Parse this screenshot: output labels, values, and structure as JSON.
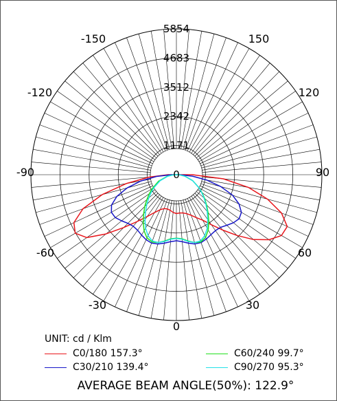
{
  "chart_data": {
    "type": "polar",
    "unit_label": "UNIT: cd / Klm",
    "radial_ticks": [
      "0",
      "1171",
      "2342",
      "3512",
      "4683",
      "5854"
    ],
    "radial_max": 5854,
    "angle_labels": [
      {
        "angle": 0,
        "label": "0"
      },
      {
        "angle": 30,
        "label": "30"
      },
      {
        "angle": -30,
        "label": "-30"
      },
      {
        "angle": 60,
        "label": "60"
      },
      {
        "angle": -60,
        "label": "-60"
      },
      {
        "angle": 90,
        "label": "90"
      },
      {
        "angle": -90,
        "label": "-90"
      },
      {
        "angle": 120,
        "label": "120"
      },
      {
        "angle": -120,
        "label": "-120"
      },
      {
        "angle": 150,
        "label": "150"
      },
      {
        "angle": -150,
        "label": "-150"
      },
      {
        "angle": 180,
        "label": "5854"
      }
    ],
    "series": [
      {
        "name": "C0/180 157.3°",
        "color": "#e8151b",
        "points": [
          [
            -90,
            340
          ],
          [
            -85,
            1100
          ],
          [
            -80,
            2050
          ],
          [
            -75,
            3100
          ],
          [
            -70,
            4000
          ],
          [
            -65,
            4550
          ],
          [
            -60,
            4700
          ],
          [
            -55,
            4400
          ],
          [
            -50,
            3700
          ],
          [
            -45,
            3000
          ],
          [
            -40,
            2450
          ],
          [
            -35,
            2050
          ],
          [
            -30,
            1750
          ],
          [
            -25,
            1550
          ],
          [
            -20,
            1450
          ],
          [
            -15,
            1420
          ],
          [
            -10,
            1450
          ],
          [
            -5,
            1520
          ],
          [
            0,
            1560
          ],
          [
            5,
            1540
          ],
          [
            10,
            1560
          ],
          [
            15,
            1620
          ],
          [
            20,
            1730
          ],
          [
            25,
            1900
          ],
          [
            30,
            2100
          ],
          [
            35,
            2450
          ],
          [
            40,
            2900
          ],
          [
            45,
            3450
          ],
          [
            50,
            4050
          ],
          [
            55,
            4550
          ],
          [
            60,
            4880
          ],
          [
            65,
            4920
          ],
          [
            70,
            4500
          ],
          [
            75,
            3800
          ],
          [
            80,
            2950
          ],
          [
            85,
            1900
          ],
          [
            90,
            650
          ]
        ]
      },
      {
        "name": "C30/210 139.4°",
        "color": "#1515c8",
        "points": [
          [
            -90,
            200
          ],
          [
            -85,
            800
          ],
          [
            -80,
            1450
          ],
          [
            -75,
            2050
          ],
          [
            -70,
            2550
          ],
          [
            -65,
            2880
          ],
          [
            -60,
            3020
          ],
          [
            -55,
            3000
          ],
          [
            -50,
            2880
          ],
          [
            -45,
            2760
          ],
          [
            -40,
            2700
          ],
          [
            -35,
            2720
          ],
          [
            -30,
            2800
          ],
          [
            -25,
            2880
          ],
          [
            -20,
            2920
          ],
          [
            -15,
            2880
          ],
          [
            -10,
            2790
          ],
          [
            -5,
            2700
          ],
          [
            0,
            2650
          ],
          [
            5,
            2700
          ],
          [
            10,
            2790
          ],
          [
            15,
            2880
          ],
          [
            20,
            2900
          ],
          [
            25,
            2850
          ],
          [
            30,
            2780
          ],
          [
            35,
            2740
          ],
          [
            40,
            2760
          ],
          [
            45,
            2870
          ],
          [
            50,
            3000
          ],
          [
            55,
            3080
          ],
          [
            60,
            3020
          ],
          [
            65,
            2780
          ],
          [
            70,
            2400
          ],
          [
            75,
            1850
          ],
          [
            80,
            1250
          ],
          [
            85,
            650
          ],
          [
            90,
            120
          ]
        ]
      },
      {
        "name": "C60/240 99.7°",
        "color": "#22e01e",
        "points": [
          [
            -90,
            100
          ],
          [
            -80,
            380
          ],
          [
            -70,
            760
          ],
          [
            -60,
            1130
          ],
          [
            -55,
            1330
          ],
          [
            -50,
            1550
          ],
          [
            -45,
            1800
          ],
          [
            -40,
            2050
          ],
          [
            -35,
            2330
          ],
          [
            -30,
            2600
          ],
          [
            -25,
            2800
          ],
          [
            -20,
            2870
          ],
          [
            -15,
            2820
          ],
          [
            -10,
            2700
          ],
          [
            -5,
            2580
          ],
          [
            0,
            2550
          ],
          [
            5,
            2580
          ],
          [
            10,
            2700
          ],
          [
            15,
            2820
          ],
          [
            20,
            2870
          ],
          [
            25,
            2780
          ],
          [
            30,
            2560
          ],
          [
            35,
            2270
          ],
          [
            40,
            1980
          ],
          [
            45,
            1720
          ],
          [
            50,
            1480
          ],
          [
            55,
            1260
          ],
          [
            60,
            1060
          ],
          [
            70,
            700
          ],
          [
            80,
            350
          ],
          [
            90,
            90
          ]
        ]
      },
      {
        "name": "C90/270 95.3°",
        "color": "#22e0e8",
        "points": [
          [
            -90,
            100
          ],
          [
            -80,
            350
          ],
          [
            -70,
            700
          ],
          [
            -60,
            1050
          ],
          [
            -55,
            1240
          ],
          [
            -50,
            1450
          ],
          [
            -45,
            1680
          ],
          [
            -40,
            1930
          ],
          [
            -35,
            2200
          ],
          [
            -30,
            2480
          ],
          [
            -25,
            2700
          ],
          [
            -20,
            2830
          ],
          [
            -15,
            2820
          ],
          [
            -10,
            2720
          ],
          [
            -5,
            2600
          ],
          [
            0,
            2560
          ],
          [
            5,
            2600
          ],
          [
            10,
            2720
          ],
          [
            15,
            2820
          ],
          [
            20,
            2830
          ],
          [
            25,
            2700
          ],
          [
            30,
            2480
          ],
          [
            35,
            2200
          ],
          [
            40,
            1930
          ],
          [
            45,
            1680
          ],
          [
            50,
            1450
          ],
          [
            55,
            1240
          ],
          [
            60,
            1050
          ],
          [
            70,
            700
          ],
          [
            80,
            350
          ],
          [
            90,
            100
          ]
        ]
      }
    ],
    "average_label": "AVERAGE BEAM ANGLE(50%): 122.9°"
  }
}
